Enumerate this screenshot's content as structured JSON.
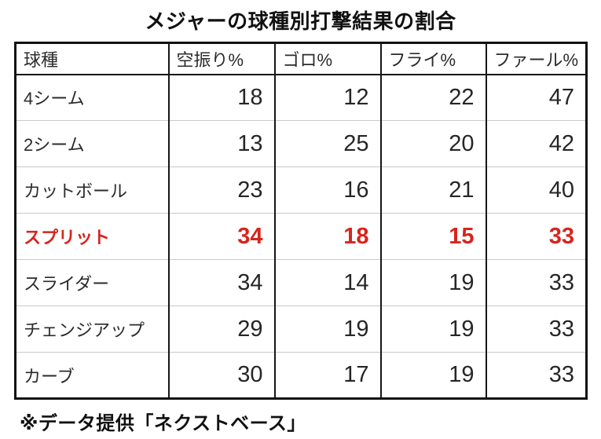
{
  "title": "メジャーの球種別打撃結果の割合",
  "table": {
    "columns": [
      "球種",
      "空振り%",
      "ゴロ%",
      "フライ%",
      "ファール%"
    ],
    "rows": [
      {
        "label": "4シーム",
        "values": [
          "18",
          "12",
          "22",
          "47"
        ],
        "highlight": false
      },
      {
        "label": "2シーム",
        "values": [
          "13",
          "25",
          "20",
          "42"
        ],
        "highlight": false
      },
      {
        "label": "カットボール",
        "values": [
          "23",
          "16",
          "21",
          "40"
        ],
        "highlight": false
      },
      {
        "label": "スプリット",
        "values": [
          "34",
          "18",
          "15",
          "33"
        ],
        "highlight": true
      },
      {
        "label": "スライダー",
        "values": [
          "34",
          "14",
          "19",
          "33"
        ],
        "highlight": false
      },
      {
        "label": "チェンジアップ",
        "values": [
          "29",
          "19",
          "19",
          "33"
        ],
        "highlight": false
      },
      {
        "label": "カーブ",
        "values": [
          "30",
          "17",
          "19",
          "33"
        ],
        "highlight": false
      }
    ]
  },
  "footer": "※データ提供「ネクストベース」",
  "colors": {
    "highlight_red": "#d7251d",
    "text": "#2b2b2b",
    "border": "#161616",
    "row_divider": "#c9c9c9",
    "background": "#ffffff"
  }
}
